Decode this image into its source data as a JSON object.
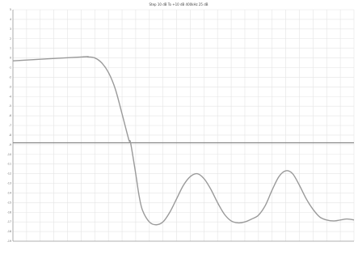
{
  "chart_data": {
    "type": "line",
    "title": "Step 10 dB To +10 dB 400kHz 25 dB",
    "xlabel": "",
    "ylabel": "",
    "xlim": [
      0,
      1
    ],
    "ylim": [
      -19,
      5
    ],
    "grid": true,
    "legend": "none",
    "y_ticks": [
      5,
      4,
      3,
      2,
      1,
      0,
      -1,
      -2,
      -3,
      -4,
      -5,
      -6,
      -7,
      -8,
      -9,
      -10,
      -11,
      -12,
      -13,
      -14,
      -15,
      -16,
      -17,
      -18,
      -19
    ],
    "reference_line_y": -8.8,
    "x_tick_count": 26,
    "series": [
      {
        "x": [
          0,
          0.2,
          0.22,
          0.24,
          0.26,
          0.28,
          0.3,
          0.32,
          0.34,
          0.345,
          0.36,
          0.37,
          0.38,
          0.4,
          0.42,
          0.44,
          0.46,
          0.48,
          0.5,
          0.52,
          0.54,
          0.56,
          0.58,
          0.6,
          0.62,
          0.64,
          0.66,
          0.68,
          0.7,
          0.72,
          0.74,
          0.76,
          0.78,
          0.8,
          0.82,
          0.84,
          0.86,
          0.88,
          0.9,
          0.92,
          0.94,
          0.96,
          0.98,
          1.0
        ],
        "values": [
          -0.3,
          0.1,
          0.1,
          0.0,
          -0.5,
          -1.5,
          -3.2,
          -5.8,
          -8.5,
          -8.8,
          -12.0,
          -14.3,
          -15.8,
          -17.0,
          -17.3,
          -17.0,
          -16.0,
          -14.6,
          -13.2,
          -12.3,
          -12.0,
          -12.5,
          -13.6,
          -15.0,
          -16.2,
          -16.9,
          -17.1,
          -17.0,
          -16.7,
          -16.3,
          -15.3,
          -13.7,
          -12.3,
          -11.7,
          -12.0,
          -13.2,
          -14.6,
          -15.7,
          -16.5,
          -16.8,
          -16.9,
          -16.8,
          -16.7,
          -16.8
        ]
      }
    ],
    "colors": {
      "line": "#9a9a9a",
      "grid": "#e4e4e4",
      "axis": "#9a9a9a",
      "reference": "#808080"
    }
  }
}
